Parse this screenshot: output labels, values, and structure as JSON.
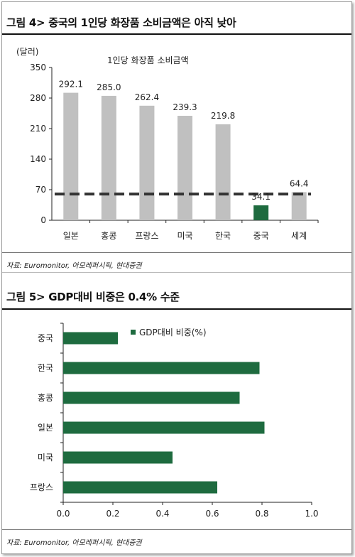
{
  "figure4": {
    "title": "그림 4> 중국의 1인당 화장품 소비금액은 아직 낮아",
    "source": "자료: Euromonitor, 아모레퍼시픽, 현대증권",
    "chart_data": {
      "type": "bar",
      "title": "1인당 화장품 소비금액",
      "ylabel": "(달러)",
      "xlabel": "",
      "categories": [
        "일본",
        "홍콩",
        "프랑스",
        "미국",
        "한국",
        "중국",
        "세계"
      ],
      "values": [
        292.1,
        285.0,
        262.4,
        239.3,
        219.8,
        34.1,
        64.4
      ],
      "value_labels": [
        "292.1",
        "285.0",
        "262.4",
        "239.3",
        "219.8",
        "34.1",
        "64.4"
      ],
      "highlight_category": "중국",
      "reference_line": 60,
      "ylim": [
        0,
        350
      ],
      "yticks": [
        0,
        70,
        140,
        210,
        280,
        350
      ],
      "ytick_labels": [
        "0",
        "70",
        "140",
        "210",
        "280",
        "350"
      ],
      "grid": false,
      "colors": {
        "bar": "#c0c0c0",
        "highlight": "#1e6b3f",
        "reference": "#333333"
      }
    }
  },
  "figure5": {
    "title": "그림 5> GDP대비 비중은 0.4% 수준",
    "source": "자료: Euromonitor, 아모레퍼시픽, 현대증권",
    "chart_data": {
      "type": "bar",
      "orientation": "horizontal",
      "title": "",
      "categories": [
        "중국",
        "한국",
        "홍콩",
        "일본",
        "미국",
        "프랑스"
      ],
      "series": [
        {
          "name": "GDP대비 비중(%)",
          "values": [
            0.22,
            0.79,
            0.71,
            0.81,
            0.44,
            0.62
          ]
        }
      ],
      "xlim": [
        0,
        1.0
      ],
      "xticks": [
        0,
        0.2,
        0.4,
        0.6,
        0.8,
        1.0
      ],
      "xtick_labels": [
        "0.0",
        "0.2",
        "0.4",
        "0.6",
        "0.8",
        "1.0"
      ],
      "legend": "top-center",
      "grid": false,
      "colors": {
        "bar": "#1e6b3f"
      }
    }
  }
}
